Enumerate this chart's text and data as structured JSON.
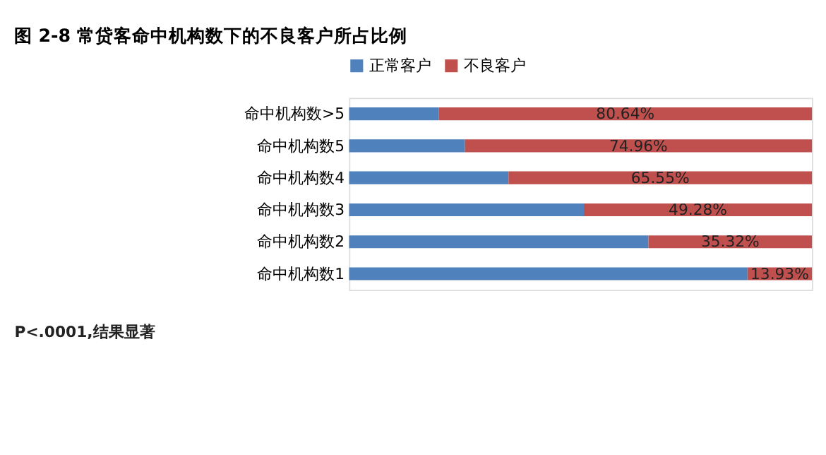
{
  "chart_data": {
    "type": "bar",
    "orientation": "horizontal",
    "stacked": true,
    "title": "图 2-8 常贷客命中机构数下的不良客户所占比例",
    "categories": [
      "命中机构数>5",
      "命中机构数5",
      "命中机构数4",
      "命中机构数3",
      "命中机构数2",
      "命中机构数1"
    ],
    "series": [
      {
        "name": "正常客户",
        "color": "#4f81bd",
        "values": [
          19.36,
          25.04,
          34.45,
          50.72,
          64.68,
          86.07
        ]
      },
      {
        "name": "不良客户",
        "color": "#c0504d",
        "values": [
          80.64,
          74.96,
          65.55,
          49.28,
          35.32,
          13.93
        ],
        "value_labels": [
          "80.64%",
          "74.96%",
          "65.55%",
          "49.28%",
          "35.32%",
          "13.93%"
        ]
      }
    ],
    "xlim": [
      0,
      100
    ],
    "tick_labels": "y",
    "legend": "top",
    "grid": false,
    "annotations": [
      "P<.0001,结果显著"
    ]
  }
}
